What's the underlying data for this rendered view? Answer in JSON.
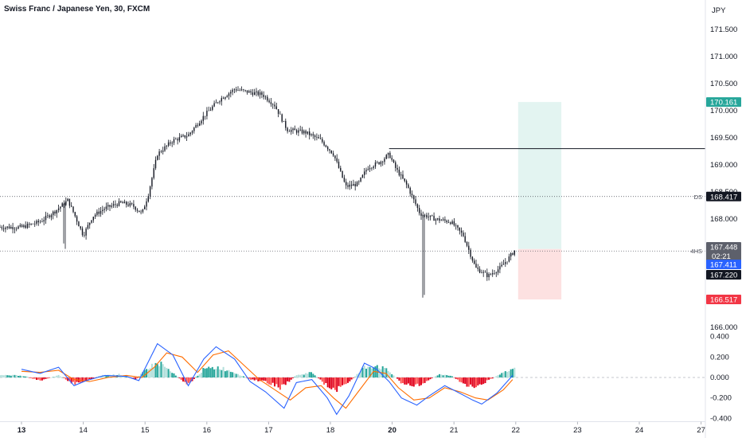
{
  "symbol_title": "Swiss Franc / Japanese Yen, 30, FXCM",
  "currency": "JPY",
  "chart_data": [
    {
      "type": "line",
      "kind": "price",
      "title": "Swiss Franc / Japanese Yen, 30, FXCM",
      "x": [
        "13",
        "14",
        "15",
        "16",
        "17",
        "18",
        "20",
        "21",
        "22",
        "23",
        "24",
        "27"
      ],
      "x_ticks_bold": [
        "13",
        "20"
      ],
      "y_ticks": [
        "166.000",
        "166.500",
        "167.000",
        "167.500",
        "168.000",
        "168.500",
        "169.000",
        "169.500",
        "170.000",
        "170.500",
        "171.000",
        "171.500"
      ],
      "ylim": [
        165.9,
        171.75
      ],
      "close_path": [
        [
          0,
          167.85
        ],
        [
          0.3,
          167.95
        ],
        [
          0.55,
          168.15
        ],
        [
          0.75,
          168.35
        ],
        [
          0.85,
          168.1
        ],
        [
          1.0,
          167.7
        ],
        [
          1.15,
          168.05
        ],
        [
          1.35,
          168.2
        ],
        [
          1.6,
          168.3
        ],
        [
          1.8,
          168.25
        ],
        [
          1.95,
          168.1
        ],
        [
          2.05,
          168.45
        ],
        [
          2.2,
          169.2
        ],
        [
          2.45,
          169.45
        ],
        [
          2.7,
          169.55
        ],
        [
          2.95,
          169.9
        ],
        [
          3.2,
          170.2
        ],
        [
          3.45,
          170.4
        ],
        [
          3.65,
          170.35
        ],
        [
          3.9,
          170.3
        ],
        [
          4.1,
          170.1
        ],
        [
          4.3,
          169.65
        ],
        [
          4.6,
          169.6
        ],
        [
          4.85,
          169.45
        ],
        [
          5.05,
          169.2
        ],
        [
          5.25,
          168.6
        ],
        [
          5.45,
          168.65
        ],
        [
          5.6,
          168.95
        ],
        [
          5.8,
          169.05
        ],
        [
          5.95,
          169.2
        ],
        [
          6.05,
          168.95
        ],
        [
          6.25,
          168.6
        ],
        [
          6.45,
          168.1
        ],
        [
          6.7,
          168.0
        ],
        [
          6.95,
          167.95
        ],
        [
          7.15,
          167.7
        ],
        [
          7.25,
          167.4
        ],
        [
          7.35,
          167.1
        ],
        [
          7.55,
          166.95
        ],
        [
          7.75,
          167.1
        ],
        [
          7.9,
          167.3
        ],
        [
          8.0,
          167.45
        ]
      ],
      "position": {
        "side": "long",
        "x_start": 8.0,
        "x_end": 8.7,
        "entry": 167.448,
        "target": 170.161,
        "stop": 166.517
      },
      "levels": [
        {
          "label": "DS",
          "value": 168.417,
          "style": "dotted"
        },
        {
          "label": "4HS",
          "value": 167.411,
          "style": "dotted"
        },
        {
          "label": "",
          "value": 169.3,
          "style": "solid",
          "x_start": 5.95
        }
      ],
      "price_tags": [
        {
          "value": 170.161,
          "text": "170.161",
          "color": "#26a69a"
        },
        {
          "value": 168.417,
          "text": "168.417",
          "color": "#131722"
        },
        {
          "value": 167.448,
          "text": "167.448",
          "color": "#5d606b",
          "subtext": "02:21"
        },
        {
          "value": 167.411,
          "text": "167.411",
          "color": "#2962ff"
        },
        {
          "value": 167.22,
          "text": "167.220",
          "color": "#131722"
        },
        {
          "value": 166.517,
          "text": "166.517",
          "color": "#f23645"
        }
      ]
    },
    {
      "type": "bar",
      "kind": "macd",
      "y_ticks": [
        "0.400",
        "0.200",
        "0.000",
        "-0.200",
        "-0.400"
      ],
      "ylim": [
        -0.42,
        0.42
      ],
      "histogram": [
        [
          0,
          0.02
        ],
        [
          0.3,
          -0.03
        ],
        [
          0.6,
          0.02
        ],
        [
          0.85,
          -0.06
        ],
        [
          1.05,
          -0.03
        ],
        [
          1.3,
          0.02
        ],
        [
          1.6,
          0.03
        ],
        [
          1.85,
          -0.02
        ],
        [
          2.05,
          0.1
        ],
        [
          2.25,
          0.14
        ],
        [
          2.45,
          0.04
        ],
        [
          2.7,
          -0.07
        ],
        [
          2.95,
          0.08
        ],
        [
          3.2,
          0.1
        ],
        [
          3.45,
          0.05
        ],
        [
          3.7,
          -0.02
        ],
        [
          3.95,
          -0.04
        ],
        [
          4.2,
          -0.1
        ],
        [
          4.45,
          0.02
        ],
        [
          4.7,
          0.05
        ],
        [
          4.9,
          -0.06
        ],
        [
          5.1,
          -0.12
        ],
        [
          5.3,
          -0.05
        ],
        [
          5.55,
          0.1
        ],
        [
          5.75,
          0.12
        ],
        [
          5.95,
          0.06
        ],
        [
          6.15,
          -0.05
        ],
        [
          6.35,
          -0.09
        ],
        [
          6.55,
          -0.04
        ],
        [
          6.75,
          0.03
        ],
        [
          6.95,
          0.02
        ],
        [
          7.15,
          -0.06
        ],
        [
          7.35,
          -0.1
        ],
        [
          7.55,
          -0.03
        ],
        [
          7.75,
          0.03
        ],
        [
          7.95,
          0.08
        ]
      ],
      "macd_line": [
        [
          0,
          0.08
        ],
        [
          0.3,
          0.04
        ],
        [
          0.6,
          0.1
        ],
        [
          0.85,
          -0.08
        ],
        [
          1.05,
          -0.03
        ],
        [
          1.35,
          0.02
        ],
        [
          1.7,
          0.01
        ],
        [
          1.9,
          -0.03
        ],
        [
          2.05,
          0.15
        ],
        [
          2.2,
          0.33
        ],
        [
          2.45,
          0.22
        ],
        [
          2.7,
          -0.08
        ],
        [
          2.95,
          0.18
        ],
        [
          3.15,
          0.3
        ],
        [
          3.45,
          0.18
        ],
        [
          3.7,
          -0.04
        ],
        [
          3.95,
          -0.14
        ],
        [
          4.25,
          -0.3
        ],
        [
          4.45,
          -0.05
        ],
        [
          4.7,
          -0.02
        ],
        [
          4.95,
          -0.2
        ],
        [
          5.1,
          -0.36
        ],
        [
          5.3,
          -0.18
        ],
        [
          5.55,
          0.14
        ],
        [
          5.75,
          0.08
        ],
        [
          5.95,
          -0.04
        ],
        [
          6.15,
          -0.2
        ],
        [
          6.4,
          -0.27
        ],
        [
          6.6,
          -0.18
        ],
        [
          6.85,
          -0.08
        ],
        [
          7.05,
          -0.14
        ],
        [
          7.3,
          -0.22
        ],
        [
          7.45,
          -0.26
        ],
        [
          7.7,
          -0.15
        ],
        [
          7.95,
          0.02
        ]
      ],
      "signal_line": [
        [
          0,
          0.06
        ],
        [
          0.3,
          0.05
        ],
        [
          0.6,
          0.07
        ],
        [
          0.85,
          -0.02
        ],
        [
          1.1,
          -0.04
        ],
        [
          1.4,
          0.0
        ],
        [
          1.7,
          0.02
        ],
        [
          1.95,
          0.0
        ],
        [
          2.15,
          0.1
        ],
        [
          2.35,
          0.24
        ],
        [
          2.6,
          0.2
        ],
        [
          2.85,
          0.05
        ],
        [
          3.1,
          0.22
        ],
        [
          3.35,
          0.26
        ],
        [
          3.6,
          0.12
        ],
        [
          3.85,
          -0.02
        ],
        [
          4.1,
          -0.12
        ],
        [
          4.35,
          -0.22
        ],
        [
          4.6,
          -0.1
        ],
        [
          4.85,
          -0.08
        ],
        [
          5.05,
          -0.2
        ],
        [
          5.25,
          -0.3
        ],
        [
          5.45,
          -0.14
        ],
        [
          5.7,
          0.06
        ],
        [
          5.9,
          0.04
        ],
        [
          6.1,
          -0.1
        ],
        [
          6.35,
          -0.22
        ],
        [
          6.6,
          -0.2
        ],
        [
          6.85,
          -0.1
        ],
        [
          7.1,
          -0.14
        ],
        [
          7.35,
          -0.2
        ],
        [
          7.55,
          -0.22
        ],
        [
          7.8,
          -0.12
        ],
        [
          7.95,
          -0.02
        ]
      ]
    }
  ],
  "colors": {
    "candle": "#131722",
    "grid_line": "#434651",
    "target_zone": "#e3f4f1",
    "stop_zone": "#fde1e1",
    "macd": "#2962ff",
    "signal": "#ff6d00",
    "hist_pos": "#26a69a",
    "hist_pos_light": "#b2dfdb",
    "hist_neg": "#ff5252",
    "hist_neg_dark": "#e0001b"
  }
}
